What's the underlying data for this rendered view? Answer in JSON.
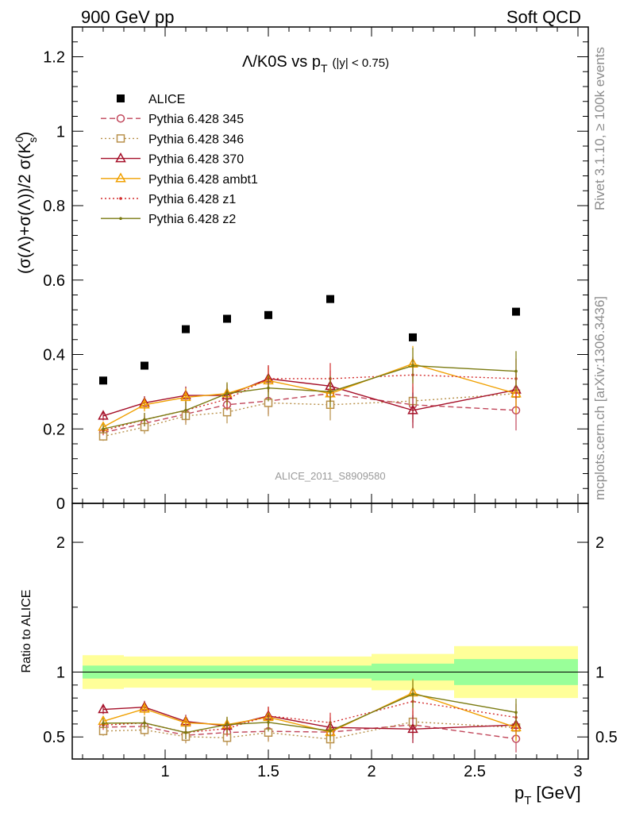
{
  "header": {
    "left_label": "900 GeV pp",
    "right_label": "Soft QCD"
  },
  "side_labels": {
    "rivet": "Rivet 3.1.10, ≥ 100k events",
    "mcplots": "mcplots.cern.ch [arXiv:1306.3436]"
  },
  "colors": {
    "ALICE": "#000000",
    "p345": "#c1465a",
    "p346": "#b8904a",
    "p370": "#a50f28",
    "ambt1": "#f0a000",
    "z1": "#d32d2d",
    "z2": "#7a7a10",
    "band_outer": "#ffff99",
    "band_inner": "#99ff99"
  },
  "chart_data": {
    "type": "line",
    "title_main": "Λ/K0S vs p",
    "title_sub": "T",
    "title_cut": "(|y| < 0.75)",
    "ylabel": "(σ(Λ)+σ(Λ))/2 σ(K",
    "ylabel_sup": "0",
    "ylabel_sub": "s",
    "ylabel_end": ")",
    "ratio_ylabel": "Ratio to ALICE",
    "xlabel_main": "p",
    "xlabel_sub": "T",
    "xlabel_unit": "[GeV]",
    "watermark": "ALICE_2011_S8909580",
    "xlim": [
      0.55,
      3.05
    ],
    "ylim": [
      0,
      1.28
    ],
    "ratio_ylim": [
      0.33,
      2.3
    ],
    "x_ticks": [
      "1",
      "1.5",
      "2",
      "2.5",
      "3"
    ],
    "y_ticks": [
      "0",
      "0.2",
      "0.4",
      "0.6",
      "0.8",
      "1",
      "1.2"
    ],
    "ratio_ticks": [
      "0.5",
      "1",
      "2"
    ],
    "x": [
      0.7,
      0.9,
      1.1,
      1.3,
      1.5,
      1.8,
      2.2,
      2.7
    ],
    "x_edges": [
      0.6,
      0.8,
      1.0,
      1.2,
      1.4,
      1.6,
      2.0,
      2.4,
      3.0
    ],
    "data": {
      "name": "ALICE",
      "values": [
        0.33,
        0.37,
        0.468,
        0.496,
        0.506,
        0.549,
        0.446,
        0.515
      ],
      "stat_rel": [
        0.05,
        0.05,
        0.05,
        0.05,
        0.05,
        0.05,
        0.065,
        0.1
      ],
      "total_rel": [
        0.13,
        0.12,
        0.12,
        0.12,
        0.12,
        0.12,
        0.14,
        0.2
      ]
    },
    "series": [
      {
        "name": "Pythia 6.428 345",
        "key": "p345",
        "marker": "circle-open",
        "dash": "7,4",
        "values": [
          0.19,
          0.215,
          0.24,
          0.265,
          0.275,
          0.295,
          0.265,
          0.25
        ]
      },
      {
        "name": "Pythia 6.428 346",
        "key": "p346",
        "marker": "square-open",
        "dash": "2,3",
        "values": [
          0.18,
          0.205,
          0.235,
          0.245,
          0.27,
          0.265,
          0.275,
          0.295
        ]
      },
      {
        "name": "Pythia 6.428 370",
        "key": "p370",
        "marker": "triangle-open",
        "dash": "",
        "values": [
          0.235,
          0.27,
          0.29,
          0.29,
          0.335,
          0.315,
          0.25,
          0.305
        ]
      },
      {
        "name": "Pythia 6.428 ambt1",
        "key": "ambt1",
        "marker": "triangle-open",
        "dash": "",
        "values": [
          0.205,
          0.265,
          0.285,
          0.295,
          0.33,
          0.295,
          0.375,
          0.295
        ]
      },
      {
        "name": "Pythia 6.428 z1",
        "key": "z1",
        "marker": "dot",
        "dash": "2,3",
        "values": [
          0.195,
          0.225,
          0.25,
          0.28,
          0.335,
          0.335,
          0.345,
          0.335
        ]
      },
      {
        "name": "Pythia 6.428 z2",
        "key": "z2",
        "marker": "dot",
        "dash": "",
        "values": [
          0.2,
          0.225,
          0.25,
          0.295,
          0.31,
          0.3,
          0.37,
          0.355
        ]
      }
    ]
  }
}
